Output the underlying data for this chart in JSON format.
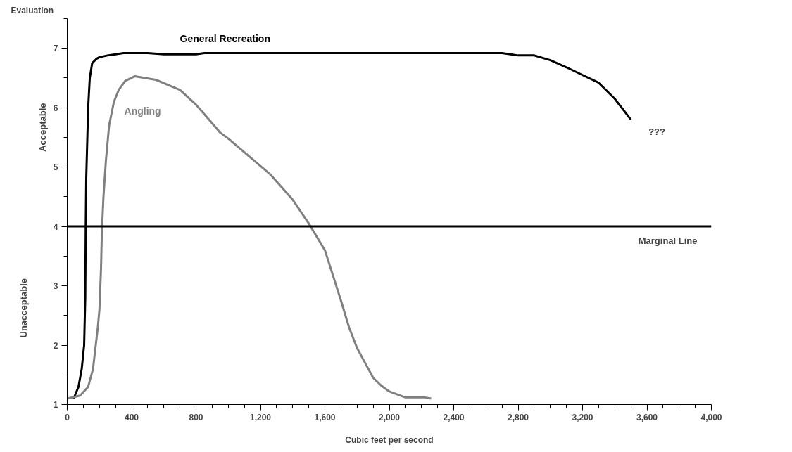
{
  "chart_data": {
    "type": "line",
    "ylabel": "Evaluation",
    "xlabel": "Cubic feet per second",
    "xlim": [
      0,
      4000
    ],
    "ylim": [
      1,
      7.5
    ],
    "xticks": [
      0,
      {
        "value": 100,
        "label": null
      },
      {
        "value": 200,
        "label": null
      },
      {
        "value": 300,
        "label": null
      },
      400,
      {
        "value": 500,
        "label": null
      },
      {
        "value": 600,
        "label": null
      },
      {
        "value": 700,
        "label": null
      },
      800,
      {
        "value": 900,
        "label": null
      },
      {
        "value": 1000,
        "label": null
      },
      {
        "value": 1100,
        "label": null
      },
      {
        "value": 1200,
        "label": "1,200"
      },
      {
        "value": 1300,
        "label": null
      },
      {
        "value": 1400,
        "label": null
      },
      {
        "value": 1500,
        "label": null
      },
      {
        "value": 1600,
        "label": "1,600"
      },
      {
        "value": 1700,
        "label": null
      },
      {
        "value": 1800,
        "label": null
      },
      {
        "value": 1900,
        "label": null
      },
      {
        "value": 2000,
        "label": "2,000"
      },
      {
        "value": 2100,
        "label": null
      },
      {
        "value": 2200,
        "label": null
      },
      {
        "value": 2300,
        "label": null
      },
      {
        "value": 2400,
        "label": "2,400"
      },
      {
        "value": 2500,
        "label": null
      },
      {
        "value": 2600,
        "label": null
      },
      {
        "value": 2700,
        "label": null
      },
      {
        "value": 2800,
        "label": "2,800"
      },
      {
        "value": 2900,
        "label": null
      },
      {
        "value": 3000,
        "label": null
      },
      {
        "value": 3100,
        "label": null
      },
      {
        "value": 3200,
        "label": "3,200"
      },
      {
        "value": 3300,
        "label": null
      },
      {
        "value": 3400,
        "label": null
      },
      {
        "value": 3500,
        "label": null
      },
      {
        "value": 3600,
        "label": "3,600"
      },
      {
        "value": 3700,
        "label": null
      },
      {
        "value": 3800,
        "label": null
      },
      {
        "value": 3900,
        "label": null
      },
      {
        "value": 4000,
        "label": "4,000"
      }
    ],
    "yticks": [
      1,
      {
        "value": 1.5,
        "label": null
      },
      2,
      {
        "value": 2.5,
        "label": null
      },
      3,
      {
        "value": 3.5,
        "label": null
      },
      4,
      {
        "value": 4.5,
        "label": null
      },
      5,
      {
        "value": 5.5,
        "label": null
      },
      6,
      {
        "value": 6.5,
        "label": null
      },
      7,
      {
        "value": 7.5,
        "label": null
      }
    ],
    "grid": false,
    "marker": "none",
    "line_style": "solid",
    "series": [
      {
        "name": "General Recreation",
        "color": "#000000",
        "x": [
          40,
          70,
          90,
          105,
          112,
          115,
          118,
          125,
          130,
          140,
          155,
          180,
          200,
          250,
          300,
          350,
          500,
          600,
          800,
          850,
          2700,
          2800,
          2900,
          3000,
          3100,
          3200,
          3300,
          3400,
          3500
        ],
        "values": [
          1.1,
          1.3,
          1.6,
          2.0,
          2.8,
          4.0,
          4.8,
          5.5,
          6.0,
          6.5,
          6.75,
          6.82,
          6.85,
          6.88,
          6.9,
          6.92,
          6.92,
          6.9,
          6.9,
          6.92,
          6.92,
          6.88,
          6.88,
          6.8,
          6.68,
          6.55,
          6.42,
          6.15,
          5.8
        ]
      },
      {
        "name": "Angling",
        "color": "#808080",
        "x": [
          0,
          80,
          130,
          160,
          190,
          200,
          210,
          215,
          225,
          240,
          260,
          290,
          320,
          360,
          420,
          550,
          700,
          800,
          880,
          950,
          1000,
          1100,
          1260,
          1400,
          1500,
          1600,
          1700,
          1750,
          1800,
          1850,
          1900,
          1950,
          2000,
          2100,
          2220,
          2260
        ],
        "values": [
          1.1,
          1.15,
          1.3,
          1.6,
          2.3,
          2.6,
          3.3,
          3.9,
          4.5,
          5.1,
          5.7,
          6.1,
          6.3,
          6.45,
          6.53,
          6.47,
          6.3,
          6.05,
          5.8,
          5.58,
          5.48,
          5.25,
          4.88,
          4.45,
          4.05,
          3.6,
          2.75,
          2.3,
          1.95,
          1.7,
          1.45,
          1.32,
          1.22,
          1.12,
          1.12,
          1.1
        ]
      }
    ],
    "ref_lines": [
      {
        "axis": "y",
        "value": 4,
        "label": "Marginal Line",
        "color": "#000000",
        "line_style": "solid"
      }
    ],
    "annotations": [
      "Acceptable",
      "Unacceptable",
      "???"
    ]
  }
}
